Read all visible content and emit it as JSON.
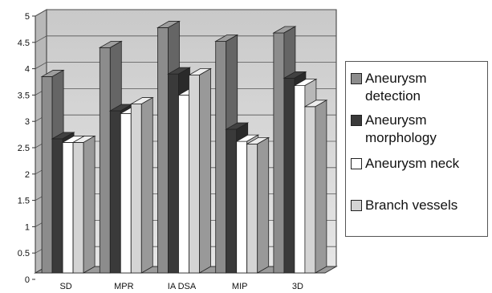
{
  "chart_data": {
    "type": "bar",
    "title": "",
    "xlabel": "",
    "ylabel": "",
    "categories": [
      "SD",
      "MPR",
      "IA DSA",
      "MIP",
      "3D"
    ],
    "ylim": [
      0,
      5
    ],
    "yticks": [
      "0",
      "0.5",
      "1",
      "1.5",
      "2",
      "2.5",
      "3",
      "3.5",
      "4",
      "4.5",
      "5"
    ],
    "grid": true,
    "legend_position": "right",
    "series": [
      {
        "name": "Aneurysm detection",
        "color": "#8c8c8c",
        "values": [
          3.85,
          4.4,
          4.78,
          4.52,
          4.68
        ]
      },
      {
        "name": "Aneurysm morphology",
        "color": "#3a3a3a",
        "values": [
          2.67,
          3.2,
          3.9,
          2.85,
          3.82
        ]
      },
      {
        "name": "Aneurysm neck",
        "color": "#ffffff",
        "values": [
          2.6,
          3.15,
          3.5,
          2.62,
          3.68
        ]
      },
      {
        "name": "Branch vessels",
        "color": "#d4d4d4",
        "values": [
          2.6,
          3.33,
          3.88,
          2.57,
          3.28
        ]
      }
    ]
  }
}
